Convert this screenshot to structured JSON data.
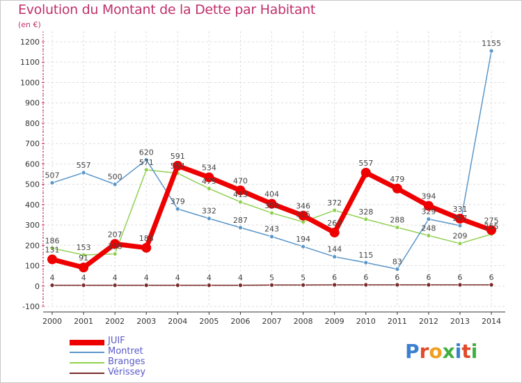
{
  "header": {
    "title": "Evolution du Montant de la Dette par Habitant",
    "subtitle": "(en €)"
  },
  "logo": {
    "text": "Proxiti",
    "colors": [
      "#3a7fd0",
      "#e04a2a",
      "#f0a020",
      "#40b040",
      "#3a7fd0",
      "#e04a2a",
      "#40b040"
    ]
  },
  "chart_data": {
    "type": "line",
    "title": "Evolution du Montant de la Dette par Habitant",
    "subtitle": "(en €)",
    "xlabel": "",
    "ylabel": "",
    "x": [
      "2000",
      "2001",
      "2002",
      "2003",
      "2004",
      "2005",
      "2006",
      "2007",
      "2008",
      "2009",
      "2010",
      "2011",
      "2012",
      "2013",
      "2014"
    ],
    "ylim": [
      -100,
      1200
    ],
    "yticks": [
      -100,
      0,
      100,
      200,
      300,
      400,
      500,
      600,
      700,
      800,
      900,
      1000,
      1100,
      1200
    ],
    "grid": true,
    "legend_position": "bottom-left",
    "series": [
      {
        "name": "JUIF",
        "color": "#ee0000",
        "values": [
          131,
          91,
          207,
          188,
          591,
          534,
          470,
          404,
          346,
          263,
          557,
          479,
          394,
          331,
          275
        ]
      },
      {
        "name": "Montret",
        "color": "#5a96c8",
        "values": [
          507,
          557,
          500,
          620,
          379,
          332,
          287,
          243,
          194,
          144,
          115,
          83,
          329,
          297,
          1155
        ]
      },
      {
        "name": "Branges",
        "color": "#90d050",
        "values": [
          186,
          153,
          158,
          571,
          554,
          479,
          413,
          359,
          315,
          372,
          328,
          288,
          248,
          209,
          255
        ]
      },
      {
        "name": "Vérissey",
        "color": "#7a2828",
        "values": [
          4,
          4,
          4,
          4,
          4,
          4,
          4,
          5,
          5,
          6,
          6,
          6,
          6,
          6,
          6
        ]
      }
    ]
  }
}
